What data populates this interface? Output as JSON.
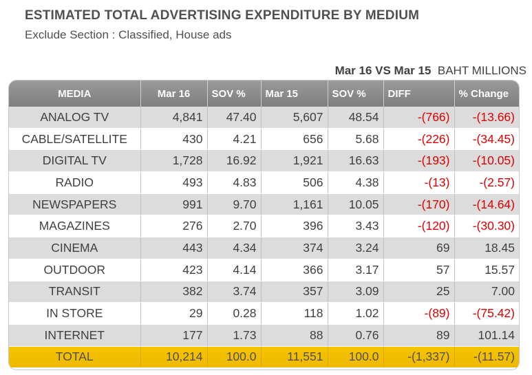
{
  "title": "ESTIMATED TOTAL ADVERTISING EXPENDITURE BY MEDIUM",
  "subtitle": "Exclude Section : Classified, House ads",
  "period": {
    "label": "Mar 16 VS Mar 15",
    "unit": "BAHT MILLIONS"
  },
  "columns": [
    "MEDIA",
    "Mar 16",
    "SOV %",
    "Mar 15",
    "SOV %",
    "DIFF",
    "% Change"
  ],
  "rows": [
    {
      "media": "ANALOG  TV",
      "mar16": "4,841",
      "sov16": "47.40",
      "mar15": "5,607",
      "sov15": "48.54",
      "diff": "-(766)",
      "change": "-(13.66)"
    },
    {
      "media": "CABLE/SATELLITE",
      "mar16": "430",
      "sov16": "4.21",
      "mar15": "656",
      "sov15": "5.68",
      "diff": "-(226)",
      "change": "-(34.45)"
    },
    {
      "media": "DIGITAL TV",
      "mar16": "1,728",
      "sov16": "16.92",
      "mar15": "1,921",
      "sov15": "16.63",
      "diff": "-(193)",
      "change": "-(10.05)"
    },
    {
      "media": "RADIO",
      "mar16": "493",
      "sov16": "4.83",
      "mar15": "506",
      "sov15": "4.38",
      "diff": "-(13)",
      "change": "-(2.57)"
    },
    {
      "media": "NEWSPAPERS",
      "mar16": "991",
      "sov16": "9.70",
      "mar15": "1,161",
      "sov15": "10.05",
      "diff": "-(170)",
      "change": "-(14.64)"
    },
    {
      "media": "MAGAZINES",
      "mar16": "276",
      "sov16": "2.70",
      "mar15": "396",
      "sov15": "3.43",
      "diff": "-(120)",
      "change": "-(30.30)"
    },
    {
      "media": "CINEMA",
      "mar16": "443",
      "sov16": "4.34",
      "mar15": "374",
      "sov15": "3.24",
      "diff": "69",
      "change": "18.45"
    },
    {
      "media": "OUTDOOR",
      "mar16": "423",
      "sov16": "4.14",
      "mar15": "366",
      "sov15": "3.17",
      "diff": "57",
      "change": "15.57"
    },
    {
      "media": "TRANSIT",
      "mar16": "382",
      "sov16": "3.74",
      "mar15": "357",
      "sov15": "3.09",
      "diff": "25",
      "change": "7.00"
    },
    {
      "media": "IN STORE",
      "mar16": "29",
      "sov16": "0.28",
      "mar15": "118",
      "sov15": "1.02",
      "diff": "-(89)",
      "change": "-(75.42)"
    },
    {
      "media": "INTERNET",
      "mar16": "177",
      "sov16": "1.73",
      "mar15": "88",
      "sov15": "0.76",
      "diff": "89",
      "change": "101.14"
    }
  ],
  "total": {
    "media": "TOTAL",
    "mar16": "10,214",
    "sov16": "100.0",
    "mar15": "11,551",
    "sov15": "100.0",
    "diff": "-(1,337)",
    "change": "-(11.57)"
  },
  "colors": {
    "header_bg": "#8c8c8c",
    "stripe": "#dcdcdc",
    "total_bg": "#f2bf00",
    "negative": "#e00000"
  }
}
